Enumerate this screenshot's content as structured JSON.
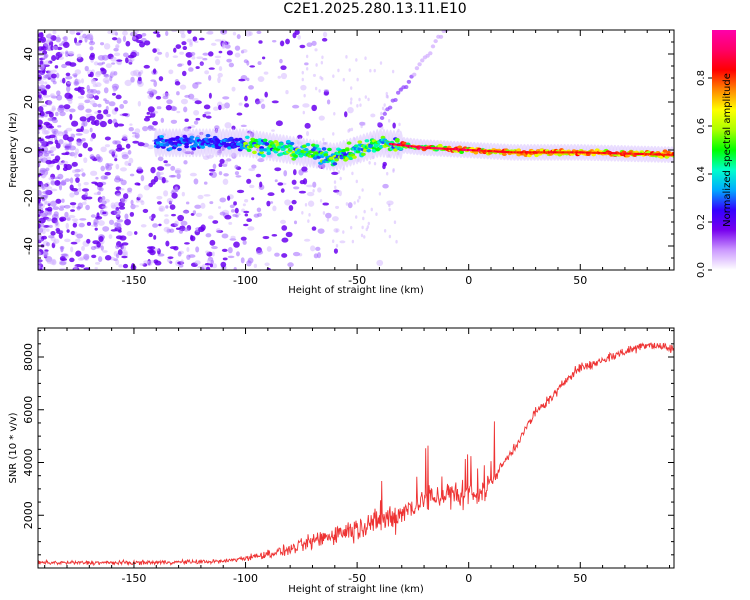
{
  "title": "C2E1.2025.280.13.11.E10",
  "chart_data": [
    {
      "type": "heatmap",
      "name": "spectrogram",
      "xlabel": "Height of straight line (km)",
      "ylabel": "Frequency (Hz)",
      "xlim": [
        -193,
        92
      ],
      "ylim": [
        -50,
        50
      ],
      "xticks": [
        -150,
        -100,
        -50,
        0,
        50
      ],
      "xticklabels": [
        "-150",
        "-100",
        "-50",
        "0",
        "50"
      ],
      "yticks": [
        -40,
        -20,
        0,
        20,
        40
      ],
      "yticklabels": [
        "-40",
        "-20",
        "0",
        "20",
        "40"
      ],
      "colorbar": {
        "label": "Normalized spectral amplitude",
        "range": [
          0,
          1
        ],
        "ticks": [
          0.0,
          0.2,
          0.4,
          0.6,
          0.8
        ],
        "ticklabels": [
          "0.0",
          "0.2",
          "0.4",
          "0.6",
          "0.8"
        ],
        "colormap": [
          "#ffffff",
          "#cc99ff",
          "#7700ee",
          "#3300ff",
          "#00aaff",
          "#00ffcc",
          "#00ff00",
          "#aaff00",
          "#ffff00",
          "#ff8800",
          "#ff0000",
          "#ff0066",
          "#ff00aa"
        ]
      },
      "ridge": {
        "description": "dominant energy band near 0 Hz",
        "x": [
          -140,
          -100,
          -80,
          -60,
          -40,
          -30,
          -20,
          0,
          20,
          50,
          92
        ],
        "frequency": [
          3,
          3,
          0,
          -3,
          3,
          2,
          1,
          0,
          -1,
          -1,
          -2
        ]
      }
    },
    {
      "type": "line",
      "name": "snr",
      "xlabel": "Height of straight line (km)",
      "ylabel": "SNR (10 * v/v)",
      "xlim": [
        -193,
        92
      ],
      "ylim": [
        0,
        9100
      ],
      "xticks": [
        -150,
        -100,
        -50,
        0,
        50
      ],
      "xticklabels": [
        "-150",
        "-100",
        "-50",
        "0",
        "50"
      ],
      "yticks": [
        2000,
        4000,
        6000,
        8000
      ],
      "yticklabels": [
        "2000",
        "4000",
        "6000",
        "8000"
      ],
      "line_color": "#ee3333",
      "series": [
        {
          "name": "SNR trend",
          "x": [
            -193,
            -150,
            -110,
            -95,
            -80,
            -70,
            -60,
            -50,
            -40,
            -30,
            -20,
            -10,
            0,
            5,
            10,
            15,
            20,
            25,
            30,
            35,
            40,
            45,
            50,
            55,
            60,
            70,
            80,
            92
          ],
          "values": [
            200,
            200,
            250,
            450,
            700,
            1000,
            1300,
            1500,
            1750,
            2100,
            2600,
            2800,
            2600,
            2900,
            3200,
            3900,
            4500,
            5200,
            5900,
            6300,
            6700,
            7300,
            7600,
            7700,
            7900,
            8200,
            8500,
            8300
          ]
        }
      ]
    }
  ]
}
